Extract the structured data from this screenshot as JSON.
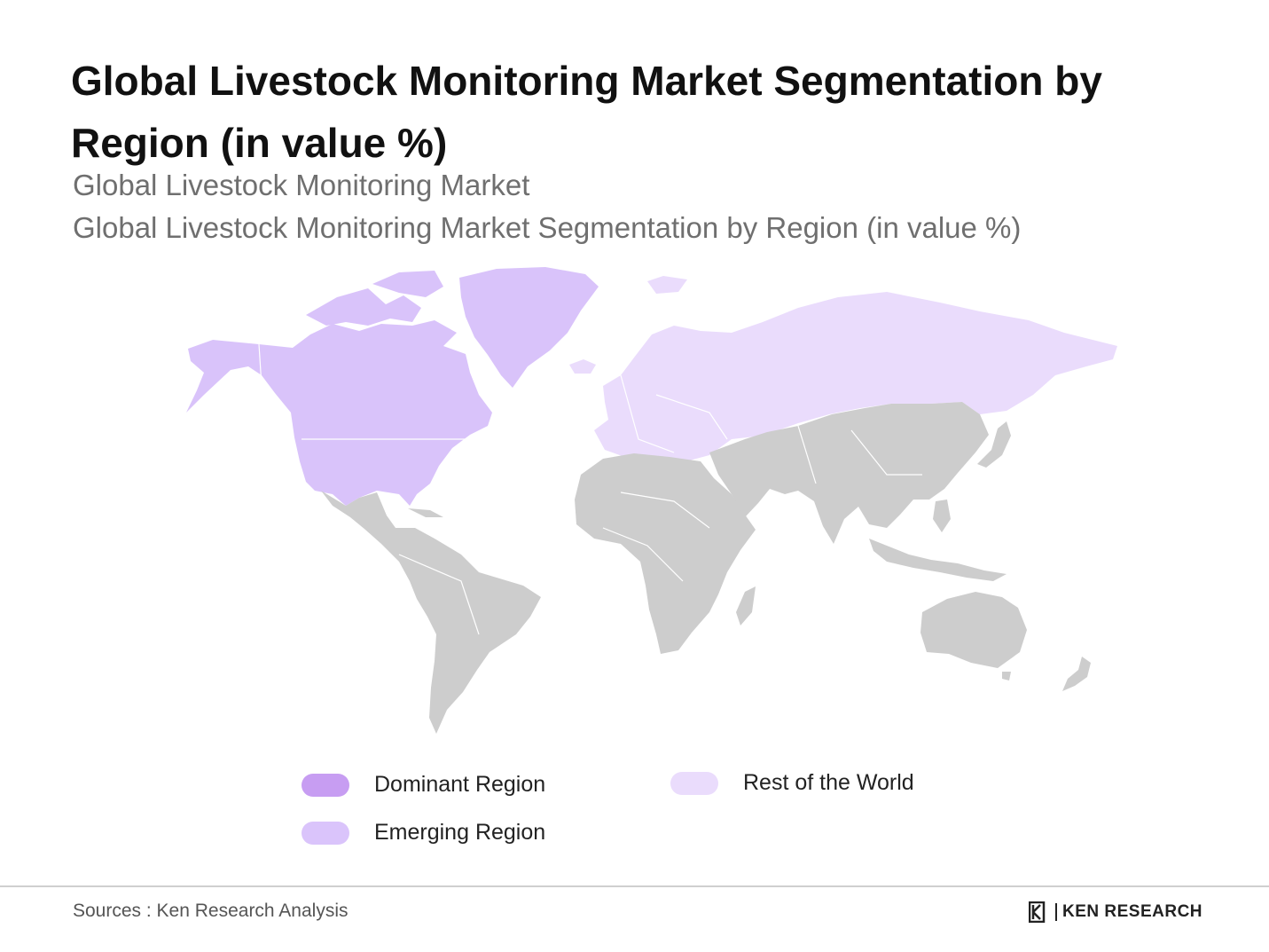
{
  "title": "Global Livestock Monitoring Market Segmentation by Region (in value %)",
  "subtitle_1": "Global Livestock Monitoring Market",
  "subtitle_2": "Global Livestock Monitoring Market Segmentation by Region (in value %)",
  "legend": {
    "dominant": {
      "label": "Dominant Region",
      "color": "#c79df2"
    },
    "emerging": {
      "label": "Emerging Region",
      "color": "#dac4fb"
    },
    "rest": {
      "label": "Rest of the World",
      "color": "#eadcfc"
    }
  },
  "map": {
    "other_color": "#cdcdcd",
    "regions": [
      {
        "name": "North America & Greenland",
        "category": "emerging"
      },
      {
        "name": "Europe & Russia",
        "category": "rest"
      },
      {
        "name": "Latin America, Africa, Middle East, Asia-Pacific & Oceania",
        "category": "other"
      }
    ]
  },
  "footer": {
    "source": "Sources : Ken Research Analysis",
    "logo_text": "KEN RESEARCH",
    "logo_mark": "K"
  }
}
